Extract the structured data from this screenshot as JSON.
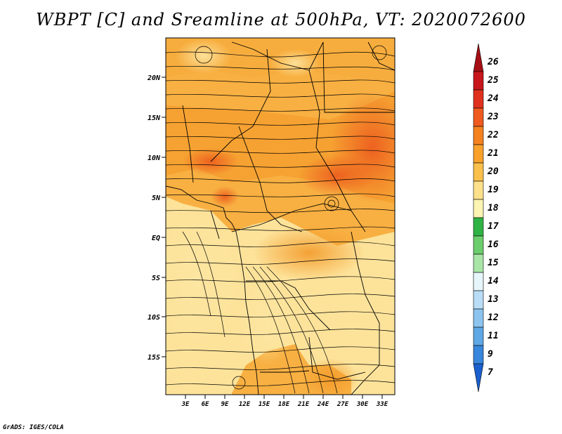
{
  "title": "WBPT [C] and Sreamline at 500hPa, VT: 2020072600",
  "footer": "GrADS: IGES/COLA",
  "map": {
    "lat_labels": [
      "20N",
      "15N",
      "10N",
      "5N",
      "EQ",
      "5S",
      "10S",
      "15S"
    ],
    "lon_labels": [
      "3E",
      "6E",
      "9E",
      "12E",
      "15E",
      "18E",
      "21E",
      "24E",
      "27E",
      "30E",
      "33E"
    ]
  },
  "colorbar": {
    "labels": [
      "26",
      "25",
      "24",
      "23",
      "22",
      "21",
      "20",
      "19",
      "18",
      "17",
      "16",
      "15",
      "14",
      "13",
      "12",
      "11",
      "9",
      "7"
    ],
    "colors": [
      "#a50f15",
      "#c8171c",
      "#e0301e",
      "#ef5a1f",
      "#f5821f",
      "#f9a12b",
      "#fbc04c",
      "#fde08a",
      "#fbf4b2",
      "#2fb345",
      "#6ccd6c",
      "#a9e5a6",
      "#e6f6fb",
      "#b9ddf6",
      "#8cc4ef",
      "#5ea8e6",
      "#3887dd",
      "#1a5fce"
    ]
  }
}
